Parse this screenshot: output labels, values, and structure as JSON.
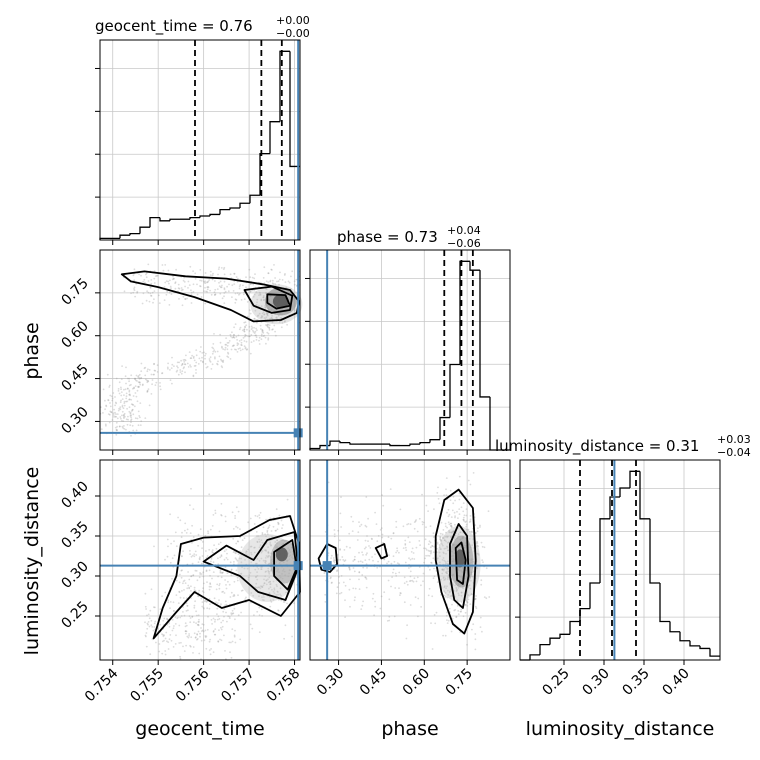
{
  "chart_data": {
    "type": "corner",
    "parameters": [
      "geocent_time",
      "phase",
      "luminosity_distance"
    ],
    "truth": {
      "geocent_time": 0.75808,
      "phase": 0.26,
      "luminosity_distance": 0.313
    },
    "colors": {
      "truth": "#4682b4",
      "hist": "#000000",
      "grid": "#c8c8c8",
      "scatter": "#9a9a9a"
    },
    "titles": {
      "geocent_time": {
        "label": "geocent_time = 0.76",
        "plus": "+0.00",
        "minus": "−0.00"
      },
      "phase": {
        "label": "phase = 0.73",
        "plus": "+0.04",
        "minus": "−0.06"
      },
      "luminosity_distance": {
        "label": "luminosity_distance = 0.31",
        "plus": "+0.03",
        "minus": "−0.04"
      }
    },
    "axes": {
      "geocent_time": {
        "range": [
          0.75372,
          0.75812
        ],
        "ticks": [
          0.754,
          0.755,
          0.756,
          0.757,
          0.758
        ],
        "tick_labels": [
          "0.754",
          "0.755",
          "0.756",
          "0.757",
          "0.758"
        ],
        "label": "geocent_time"
      },
      "phase": {
        "range": [
          0.2,
          0.9
        ],
        "ticks": [
          0.3,
          0.45,
          0.6,
          0.75
        ],
        "tick_labels": [
          "0.30",
          "0.45",
          "0.60",
          "0.75"
        ],
        "label": "phase"
      },
      "luminosity_distance": {
        "range": [
          0.195,
          0.445
        ],
        "ticks": [
          0.25,
          0.3,
          0.35,
          0.4
        ],
        "tick_labels": [
          "0.25",
          "0.30",
          "0.35",
          "0.40"
        ],
        "label": "luminosity_distance"
      }
    },
    "quantiles": {
      "geocent_time": [
        0.75581,
        0.75727,
        0.75772
      ],
      "phase": [
        0.67,
        0.73,
        0.77
      ],
      "luminosity_distance": [
        0.27,
        0.31,
        0.34
      ]
    },
    "histograms": {
      "geocent_time": {
        "edges": [
          0.75372,
          0.75394,
          0.75416,
          0.75438,
          0.7546,
          0.75482,
          0.75504,
          0.75526,
          0.75548,
          0.7557,
          0.75592,
          0.75614,
          0.75636,
          0.75658,
          0.7568,
          0.75702,
          0.75724,
          0.75746,
          0.75768,
          0.7579,
          0.75812
        ],
        "counts": [
          1,
          1,
          3,
          4,
          8,
          14,
          12,
          13,
          13,
          14,
          15,
          16,
          19,
          20,
          23,
          28,
          54,
          74,
          118,
          46
        ]
      },
      "phase": {
        "edges": [
          0.2,
          0.235,
          0.27,
          0.305,
          0.34,
          0.375,
          0.41,
          0.445,
          0.48,
          0.515,
          0.55,
          0.585,
          0.62,
          0.655,
          0.69,
          0.725,
          0.76,
          0.795,
          0.83,
          0.865,
          0.9
        ],
        "counts": [
          1,
          3,
          6,
          5,
          4,
          4,
          4,
          4,
          3,
          3,
          4,
          5,
          7,
          22,
          58,
          128,
          122,
          36,
          0,
          0
        ]
      },
      "luminosity_distance": {
        "edges": [
          0.195,
          0.2075,
          0.22,
          0.2325,
          0.245,
          0.2575,
          0.27,
          0.2825,
          0.295,
          0.3075,
          0.32,
          0.3325,
          0.345,
          0.3575,
          0.37,
          0.3825,
          0.395,
          0.4075,
          0.42,
          0.4325,
          0.445
        ],
        "counts": [
          0,
          4,
          12,
          17,
          20,
          30,
          40,
          60,
          110,
          127,
          134,
          147,
          110,
          60,
          30,
          22,
          15,
          11,
          9,
          3
        ]
      }
    }
  }
}
